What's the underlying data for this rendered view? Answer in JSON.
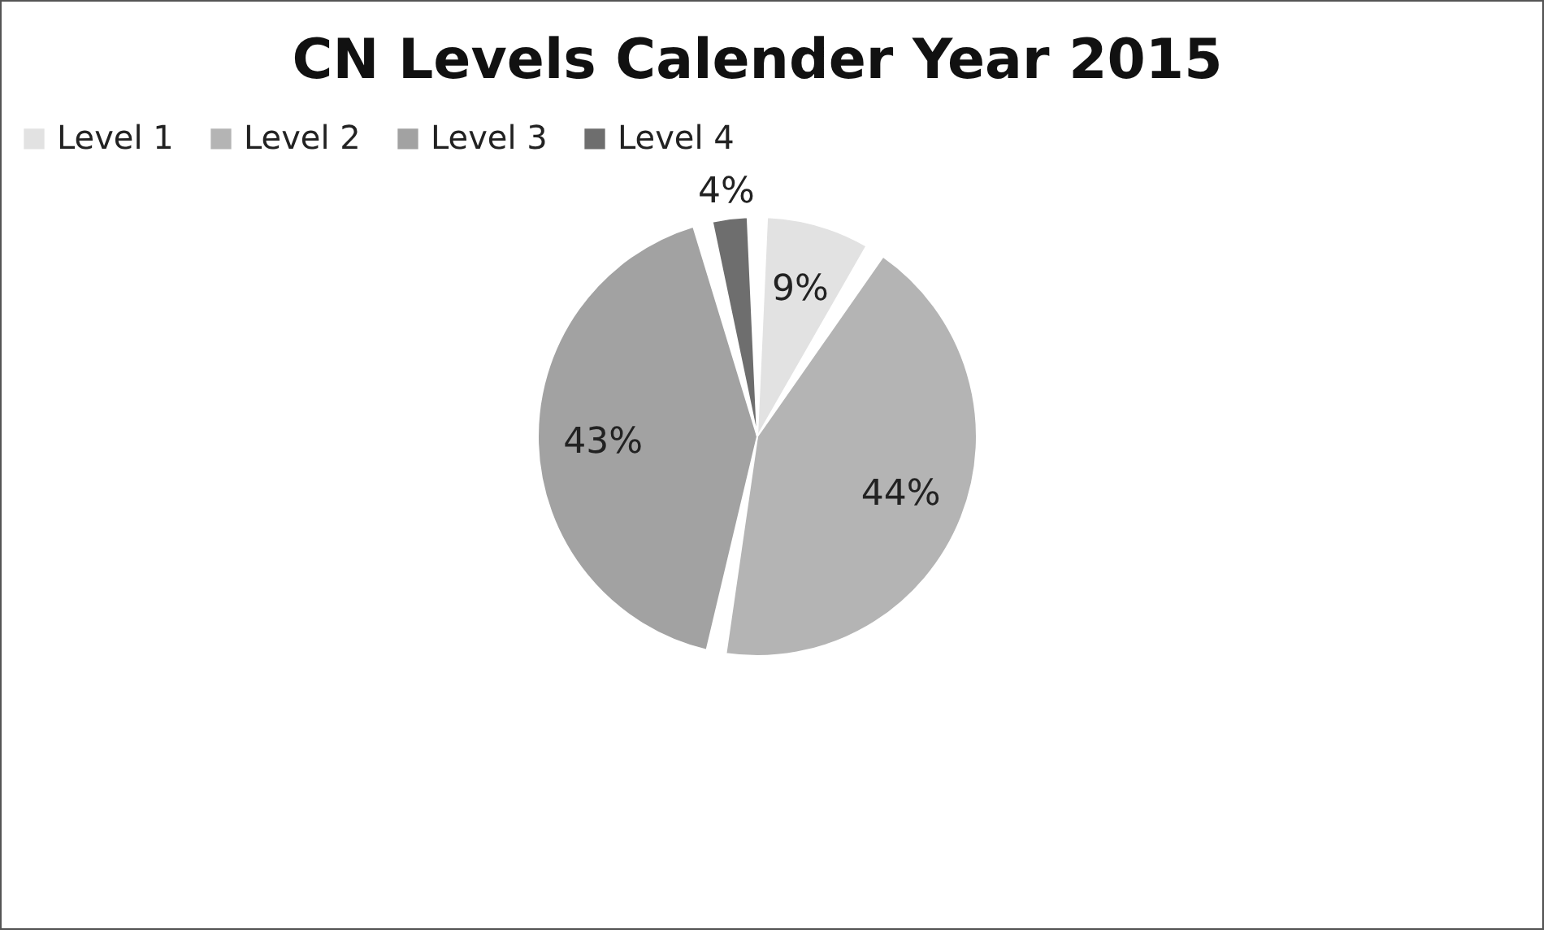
{
  "chart_data": {
    "type": "pie",
    "title": "CN Levels Calender Year 2015",
    "categories": [
      "Level 1",
      "Level 2",
      "Level 3",
      "Level 4"
    ],
    "values": [
      9,
      44,
      43,
      4
    ],
    "colors": [
      "#e2e2e2",
      "#b4b4b4",
      "#a2a2a2",
      "#6e6e6e"
    ],
    "value_labels": [
      "9%",
      "44%",
      "43%",
      "4%"
    ],
    "legend": "top"
  }
}
